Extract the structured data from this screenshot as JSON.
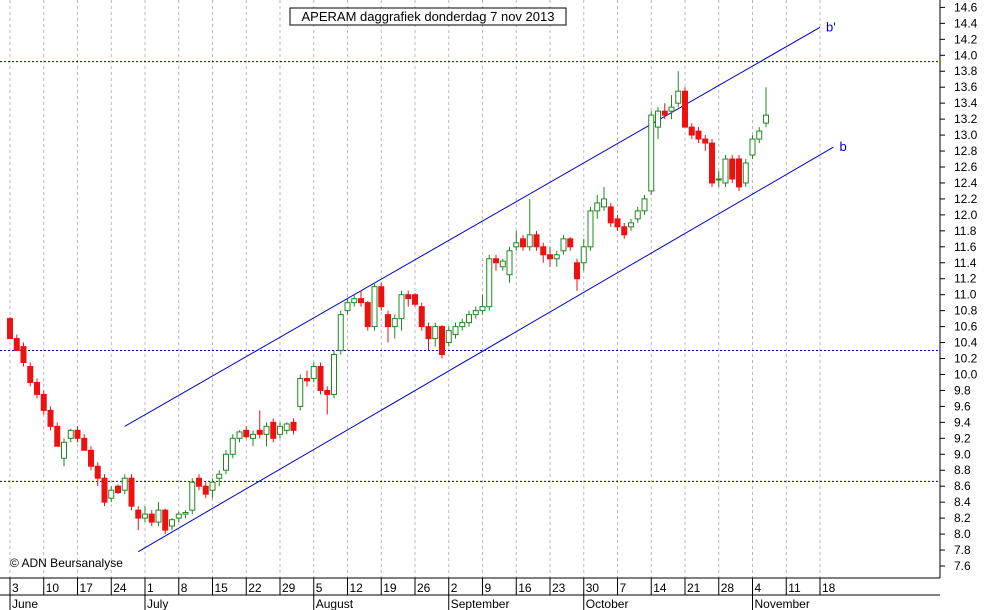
{
  "chart_data": {
    "type": "candlestick",
    "title": "APERAM daggrafiek donderdag 7 nov 2013",
    "copyright": "© ADN Beursanalyse",
    "ylim": [
      7.45,
      14.75
    ],
    "y_ticks": [
      "7.6",
      "7.8",
      "8.0",
      "8.2",
      "8.4",
      "8.6",
      "8.8",
      "9.0",
      "9.2",
      "9.4",
      "9.6",
      "9.8",
      "10.0",
      "10.2",
      "10.4",
      "10.6",
      "10.8",
      "11.0",
      "11.2",
      "11.4",
      "11.6",
      "11.8",
      "12.0",
      "12.2",
      "12.4",
      "12.6",
      "12.8",
      "13.0",
      "13.2",
      "13.4",
      "13.6",
      "13.8",
      "14.0",
      "14.2",
      "14.4",
      "14.6"
    ],
    "x_day_labels": [
      {
        "label": "3",
        "d": 0
      },
      {
        "label": "10",
        "d": 5
      },
      {
        "label": "17",
        "d": 10
      },
      {
        "label": "24",
        "d": 15
      },
      {
        "label": "1",
        "d": 20
      },
      {
        "label": "8",
        "d": 25
      },
      {
        "label": "15",
        "d": 30
      },
      {
        "label": "22",
        "d": 35
      },
      {
        "label": "29",
        "d": 40
      },
      {
        "label": "5",
        "d": 45
      },
      {
        "label": "12",
        "d": 50
      },
      {
        "label": "19",
        "d": 55
      },
      {
        "label": "26",
        "d": 60
      },
      {
        "label": "2",
        "d": 65
      },
      {
        "label": "9",
        "d": 70
      },
      {
        "label": "16",
        "d": 75
      },
      {
        "label": "23",
        "d": 80
      },
      {
        "label": "30",
        "d": 85
      },
      {
        "label": "7",
        "d": 90
      },
      {
        "label": "14",
        "d": 95
      },
      {
        "label": "21",
        "d": 100
      },
      {
        "label": "28",
        "d": 105
      },
      {
        "label": "4",
        "d": 110
      },
      {
        "label": "11",
        "d": 115
      },
      {
        "label": "18",
        "d": 120
      }
    ],
    "x_month_labels": [
      {
        "label": "June",
        "d": 0
      },
      {
        "label": "July",
        "d": 20
      },
      {
        "label": "August",
        "d": 45
      },
      {
        "label": "September",
        "d": 65
      },
      {
        "label": "October",
        "d": 85
      },
      {
        "label": "November",
        "d": 110
      }
    ],
    "horizontal_levels": [
      13.92,
      10.3,
      8.66
    ],
    "trendlines": [
      {
        "label": "b'",
        "points": [
          [
            17,
            9.35
          ],
          [
            120,
            14.35
          ]
        ]
      },
      {
        "label": "b",
        "points": [
          [
            19,
            7.78
          ],
          [
            122,
            12.85
          ]
        ]
      }
    ],
    "candles": [
      {
        "d": 0,
        "o": 10.7,
        "h": 10.72,
        "l": 10.45,
        "c": 10.45
      },
      {
        "d": 1,
        "o": 10.45,
        "h": 10.5,
        "l": 10.3,
        "c": 10.3
      },
      {
        "d": 2,
        "o": 10.35,
        "h": 10.4,
        "l": 10.1,
        "c": 10.15
      },
      {
        "d": 3,
        "o": 10.1,
        "h": 10.15,
        "l": 9.85,
        "c": 9.9
      },
      {
        "d": 4,
        "o": 9.9,
        "h": 9.95,
        "l": 9.7,
        "c": 9.75
      },
      {
        "d": 5,
        "o": 9.75,
        "h": 9.8,
        "l": 9.5,
        "c": 9.55
      },
      {
        "d": 6,
        "o": 9.55,
        "h": 9.6,
        "l": 9.3,
        "c": 9.35
      },
      {
        "d": 7,
        "o": 9.35,
        "h": 9.4,
        "l": 9.1,
        "c": 9.1
      },
      {
        "d": 8,
        "o": 8.95,
        "h": 9.2,
        "l": 8.85,
        "c": 9.15
      },
      {
        "d": 9,
        "o": 9.2,
        "h": 9.32,
        "l": 9.15,
        "c": 9.3
      },
      {
        "d": 10,
        "o": 9.3,
        "h": 9.35,
        "l": 9.15,
        "c": 9.2
      },
      {
        "d": 11,
        "o": 9.2,
        "h": 9.25,
        "l": 9.05,
        "c": 9.05
      },
      {
        "d": 12,
        "o": 9.05,
        "h": 9.1,
        "l": 8.8,
        "c": 8.85
      },
      {
        "d": 13,
        "o": 8.85,
        "h": 8.9,
        "l": 8.6,
        "c": 8.7
      },
      {
        "d": 14,
        "o": 8.7,
        "h": 8.75,
        "l": 8.35,
        "c": 8.4
      },
      {
        "d": 15,
        "o": 8.45,
        "h": 8.6,
        "l": 8.4,
        "c": 8.55
      },
      {
        "d": 16,
        "o": 8.6,
        "h": 8.62,
        "l": 8.5,
        "c": 8.52
      },
      {
        "d": 17,
        "o": 8.55,
        "h": 8.75,
        "l": 8.5,
        "c": 8.7
      },
      {
        "d": 18,
        "o": 8.7,
        "h": 8.75,
        "l": 8.3,
        "c": 8.35
      },
      {
        "d": 19,
        "o": 8.3,
        "h": 8.35,
        "l": 8.05,
        "c": 8.2
      },
      {
        "d": 20,
        "o": 8.2,
        "h": 8.35,
        "l": 8.15,
        "c": 8.25
      },
      {
        "d": 21,
        "o": 8.25,
        "h": 8.3,
        "l": 8.1,
        "c": 8.15
      },
      {
        "d": 22,
        "o": 8.15,
        "h": 8.4,
        "l": 8.1,
        "c": 8.3
      },
      {
        "d": 23,
        "o": 8.3,
        "h": 8.32,
        "l": 8.0,
        "c": 8.05
      },
      {
        "d": 24,
        "o": 8.1,
        "h": 8.2,
        "l": 8.05,
        "c": 8.18
      },
      {
        "d": 25,
        "o": 8.2,
        "h": 8.28,
        "l": 8.15,
        "c": 8.25
      },
      {
        "d": 26,
        "o": 8.25,
        "h": 8.3,
        "l": 8.2,
        "c": 8.27
      },
      {
        "d": 27,
        "o": 8.3,
        "h": 8.7,
        "l": 8.25,
        "c": 8.65
      },
      {
        "d": 28,
        "o": 8.7,
        "h": 8.75,
        "l": 8.55,
        "c": 8.6
      },
      {
        "d": 29,
        "o": 8.6,
        "h": 8.65,
        "l": 8.45,
        "c": 8.5
      },
      {
        "d": 30,
        "o": 8.55,
        "h": 8.7,
        "l": 8.45,
        "c": 8.65
      },
      {
        "d": 31,
        "o": 8.7,
        "h": 8.8,
        "l": 8.6,
        "c": 8.75
      },
      {
        "d": 32,
        "o": 8.8,
        "h": 9.05,
        "l": 8.75,
        "c": 9.0
      },
      {
        "d": 33,
        "o": 9.0,
        "h": 9.25,
        "l": 8.95,
        "c": 9.2
      },
      {
        "d": 34,
        "o": 9.2,
        "h": 9.3,
        "l": 9.15,
        "c": 9.28
      },
      {
        "d": 35,
        "o": 9.3,
        "h": 9.35,
        "l": 9.2,
        "c": 9.22
      },
      {
        "d": 36,
        "o": 9.2,
        "h": 9.3,
        "l": 9.1,
        "c": 9.25
      },
      {
        "d": 37,
        "o": 9.3,
        "h": 9.55,
        "l": 9.2,
        "c": 9.25
      },
      {
        "d": 38,
        "o": 9.25,
        "h": 9.4,
        "l": 9.1,
        "c": 9.35
      },
      {
        "d": 39,
        "o": 9.4,
        "h": 9.45,
        "l": 9.15,
        "c": 9.2
      },
      {
        "d": 40,
        "o": 9.25,
        "h": 9.4,
        "l": 9.2,
        "c": 9.35
      },
      {
        "d": 41,
        "o": 9.3,
        "h": 9.4,
        "l": 9.25,
        "c": 9.38
      },
      {
        "d": 42,
        "o": 9.4,
        "h": 9.45,
        "l": 9.25,
        "c": 9.3
      },
      {
        "d": 43,
        "o": 9.6,
        "h": 10.0,
        "l": 9.55,
        "c": 9.95
      },
      {
        "d": 44,
        "o": 9.95,
        "h": 10.05,
        "l": 9.85,
        "c": 9.92
      },
      {
        "d": 45,
        "o": 9.95,
        "h": 10.15,
        "l": 9.9,
        "c": 10.1
      },
      {
        "d": 46,
        "o": 10.1,
        "h": 10.15,
        "l": 9.75,
        "c": 9.8
      },
      {
        "d": 47,
        "o": 9.8,
        "h": 9.85,
        "l": 9.5,
        "c": 9.75
      },
      {
        "d": 48,
        "o": 9.75,
        "h": 10.3,
        "l": 9.7,
        "c": 10.25
      },
      {
        "d": 49,
        "o": 10.3,
        "h": 10.8,
        "l": 10.25,
        "c": 10.75
      },
      {
        "d": 50,
        "o": 10.8,
        "h": 10.95,
        "l": 10.75,
        "c": 10.9
      },
      {
        "d": 51,
        "o": 10.9,
        "h": 11.0,
        "l": 10.85,
        "c": 10.95
      },
      {
        "d": 52,
        "o": 10.95,
        "h": 11.05,
        "l": 10.85,
        "c": 10.9
      },
      {
        "d": 53,
        "o": 10.9,
        "h": 10.92,
        "l": 10.55,
        "c": 10.6
      },
      {
        "d": 54,
        "o": 10.6,
        "h": 11.15,
        "l": 10.55,
        "c": 11.1
      },
      {
        "d": 55,
        "o": 11.1,
        "h": 11.15,
        "l": 10.8,
        "c": 10.85
      },
      {
        "d": 56,
        "o": 10.75,
        "h": 10.8,
        "l": 10.4,
        "c": 10.6
      },
      {
        "d": 57,
        "o": 10.6,
        "h": 10.75,
        "l": 10.45,
        "c": 10.7
      },
      {
        "d": 58,
        "o": 10.7,
        "h": 11.05,
        "l": 10.55,
        "c": 11.0
      },
      {
        "d": 59,
        "o": 11.0,
        "h": 11.05,
        "l": 10.85,
        "c": 10.95
      },
      {
        "d": 60,
        "o": 11.0,
        "h": 11.02,
        "l": 10.85,
        "c": 10.88
      },
      {
        "d": 61,
        "o": 10.85,
        "h": 10.9,
        "l": 10.55,
        "c": 10.6
      },
      {
        "d": 62,
        "o": 10.6,
        "h": 10.65,
        "l": 10.3,
        "c": 10.45
      },
      {
        "d": 63,
        "o": 10.45,
        "h": 10.65,
        "l": 10.35,
        "c": 10.6
      },
      {
        "d": 64,
        "o": 10.6,
        "h": 10.62,
        "l": 10.2,
        "c": 10.25
      },
      {
        "d": 65,
        "o": 10.4,
        "h": 10.6,
        "l": 10.35,
        "c": 10.55
      },
      {
        "d": 66,
        "o": 10.5,
        "h": 10.65,
        "l": 10.45,
        "c": 10.6
      },
      {
        "d": 67,
        "o": 10.6,
        "h": 10.7,
        "l": 10.55,
        "c": 10.65
      },
      {
        "d": 68,
        "o": 10.65,
        "h": 10.8,
        "l": 10.6,
        "c": 10.75
      },
      {
        "d": 69,
        "o": 10.75,
        "h": 10.85,
        "l": 10.7,
        "c": 10.8
      },
      {
        "d": 70,
        "o": 10.8,
        "h": 11.0,
        "l": 10.75,
        "c": 10.85
      },
      {
        "d": 71,
        "o": 10.85,
        "h": 11.5,
        "l": 10.8,
        "c": 11.45
      },
      {
        "d": 72,
        "o": 11.45,
        "h": 11.5,
        "l": 11.3,
        "c": 11.4
      },
      {
        "d": 73,
        "o": 11.35,
        "h": 11.45,
        "l": 11.3,
        "c": 11.42
      },
      {
        "d": 74,
        "o": 11.25,
        "h": 11.6,
        "l": 11.15,
        "c": 11.55
      },
      {
        "d": 75,
        "o": 11.6,
        "h": 11.8,
        "l": 11.55,
        "c": 11.65
      },
      {
        "d": 76,
        "o": 11.7,
        "h": 11.75,
        "l": 11.55,
        "c": 11.6
      },
      {
        "d": 77,
        "o": 11.6,
        "h": 12.2,
        "l": 11.55,
        "c": 11.75
      },
      {
        "d": 78,
        "o": 11.75,
        "h": 11.8,
        "l": 11.55,
        "c": 11.6
      },
      {
        "d": 79,
        "o": 11.6,
        "h": 11.65,
        "l": 11.4,
        "c": 11.5
      },
      {
        "d": 80,
        "o": 11.5,
        "h": 11.6,
        "l": 11.35,
        "c": 11.45
      },
      {
        "d": 81,
        "o": 11.45,
        "h": 11.55,
        "l": 11.35,
        "c": 11.5
      },
      {
        "d": 82,
        "o": 11.55,
        "h": 11.75,
        "l": 11.5,
        "c": 11.7
      },
      {
        "d": 83,
        "o": 11.7,
        "h": 11.72,
        "l": 11.55,
        "c": 11.6
      },
      {
        "d": 84,
        "o": 11.4,
        "h": 11.45,
        "l": 11.05,
        "c": 11.2
      },
      {
        "d": 85,
        "o": 11.4,
        "h": 11.7,
        "l": 11.3,
        "c": 11.6
      },
      {
        "d": 86,
        "o": 11.6,
        "h": 12.1,
        "l": 11.55,
        "c": 12.05
      },
      {
        "d": 87,
        "o": 12.05,
        "h": 12.25,
        "l": 11.95,
        "c": 12.15
      },
      {
        "d": 88,
        "o": 12.1,
        "h": 12.35,
        "l": 12.05,
        "c": 12.2
      },
      {
        "d": 89,
        "o": 12.1,
        "h": 12.15,
        "l": 11.85,
        "c": 11.9
      },
      {
        "d": 90,
        "o": 11.95,
        "h": 12.0,
        "l": 11.8,
        "c": 11.85
      },
      {
        "d": 91,
        "o": 11.85,
        "h": 11.9,
        "l": 11.7,
        "c": 11.75
      },
      {
        "d": 92,
        "o": 11.85,
        "h": 11.95,
        "l": 11.8,
        "c": 11.9
      },
      {
        "d": 93,
        "o": 11.95,
        "h": 12.1,
        "l": 11.9,
        "c": 12.05
      },
      {
        "d": 94,
        "o": 12.05,
        "h": 12.25,
        "l": 12.0,
        "c": 12.2
      },
      {
        "d": 95,
        "o": 12.3,
        "h": 13.3,
        "l": 12.25,
        "c": 13.25
      },
      {
        "d": 96,
        "o": 13.1,
        "h": 13.35,
        "l": 12.95,
        "c": 13.3
      },
      {
        "d": 97,
        "o": 13.3,
        "h": 13.4,
        "l": 13.2,
        "c": 13.25
      },
      {
        "d": 98,
        "o": 13.3,
        "h": 13.5,
        "l": 13.2,
        "c": 13.35
      },
      {
        "d": 99,
        "o": 13.4,
        "h": 13.8,
        "l": 13.35,
        "c": 13.55
      },
      {
        "d": 100,
        "o": 13.55,
        "h": 13.6,
        "l": 13.1,
        "c": 13.1
      },
      {
        "d": 101,
        "o": 13.1,
        "h": 13.15,
        "l": 12.95,
        "c": 13.0
      },
      {
        "d": 102,
        "o": 13.05,
        "h": 13.1,
        "l": 12.9,
        "c": 12.95
      },
      {
        "d": 103,
        "o": 12.95,
        "h": 13.0,
        "l": 12.8,
        "c": 12.9
      },
      {
        "d": 104,
        "o": 12.9,
        "h": 12.95,
        "l": 12.35,
        "c": 12.4
      },
      {
        "d": 105,
        "o": 12.45,
        "h": 12.55,
        "l": 12.35,
        "c": 12.45
      },
      {
        "d": 106,
        "o": 12.4,
        "h": 12.75,
        "l": 12.35,
        "c": 12.7
      },
      {
        "d": 107,
        "o": 12.7,
        "h": 12.75,
        "l": 12.4,
        "c": 12.45
      },
      {
        "d": 108,
        "o": 12.7,
        "h": 12.75,
        "l": 12.3,
        "c": 12.35
      },
      {
        "d": 109,
        "o": 12.4,
        "h": 12.7,
        "l": 12.35,
        "c": 12.65
      },
      {
        "d": 110,
        "o": 12.75,
        "h": 13.0,
        "l": 12.7,
        "c": 12.95
      },
      {
        "d": 111,
        "o": 12.95,
        "h": 13.1,
        "l": 12.9,
        "c": 13.05
      },
      {
        "d": 112,
        "o": 13.15,
        "h": 13.6,
        "l": 13.1,
        "c": 13.25
      }
    ],
    "colors": {
      "up": "#1e8a1e",
      "down": "#ee1111",
      "channel": "#0000cc",
      "level": "#0000aa",
      "grid": "#b8b8b8",
      "text": "#000000"
    }
  }
}
